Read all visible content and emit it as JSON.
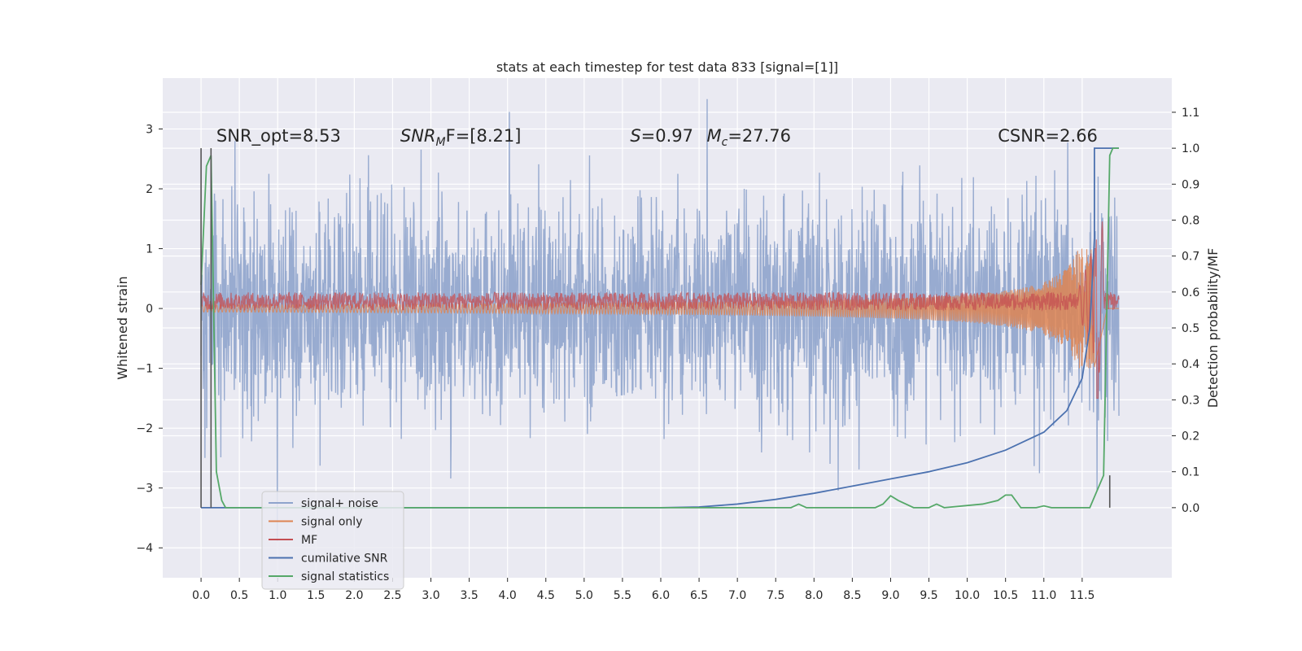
{
  "chart_data": {
    "type": "line",
    "title": "stats at each timestep for test data 833 [signal=[1]]",
    "xlabel": "",
    "ylabel": "Whitened strain",
    "ylabel_right": "Detection probability/MF",
    "xlim": [
      -0.5,
      12.67
    ],
    "ylim": [
      -4.5,
      3.85
    ],
    "ylim_right": [
      -0.195,
      1.195
    ],
    "x_ticks": [
      "0.0",
      "0.5",
      "1.0",
      "1.5",
      "2.0",
      "2.5",
      "3.0",
      "3.5",
      "4.0",
      "4.5",
      "5.0",
      "5.5",
      "6.0",
      "6.5",
      "7.0",
      "7.5",
      "8.0",
      "8.5",
      "9.0",
      "9.5",
      "10.0",
      "10.5",
      "11.0",
      "11.5"
    ],
    "y_ticks_left": [
      "3",
      "2",
      "1",
      "0",
      "−1",
      "−2",
      "−3",
      "−4"
    ],
    "y_ticks_right": [
      "1.1",
      "1.0",
      "0.9",
      "0.8",
      "0.7",
      "0.6",
      "0.5",
      "0.4",
      "0.3",
      "0.2",
      "0.1",
      "0.0"
    ],
    "grid": true,
    "legend_position": "lower-left",
    "annotations": [
      {
        "text": "SNR_opt=8.53",
        "x": 0.2,
        "y": 2.79
      },
      {
        "text": "SNR",
        "sub": "M",
        "tail": "F=[8.21]",
        "x": 2.6,
        "y": 2.79,
        "italic": true
      },
      {
        "text": "S",
        "tail": "=0.97",
        "x": 5.6,
        "y": 2.79,
        "italic": true
      },
      {
        "text": "M",
        "sub": "c",
        "tail": "=27.76",
        "x": 6.6,
        "y": 2.79,
        "italic": true
      },
      {
        "text": "CSNR=2.66",
        "x": 10.4,
        "y": 2.79
      }
    ],
    "series": [
      {
        "name": "signal+ noise",
        "color": "#8fa4cc",
        "axis": "left",
        "noise_amplitude": 1.8,
        "x_range": [
          0.0,
          11.98
        ]
      },
      {
        "name": "signal only",
        "color": "#dd8452",
        "axis": "left",
        "description_values": {
          "amplitude_start": 0.05,
          "amplitude_end": 1.0,
          "peak_x": 11.66
        }
      },
      {
        "name": "MF",
        "color": "#c44e52",
        "axis": "left",
        "description_values": {
          "center": 0.12,
          "band": 0.15,
          "peak_x": 11.66,
          "peak_y": 1.0,
          "trough_y": -1.5
        }
      },
      {
        "name": "cumilative SNR",
        "color": "#4c72b0",
        "axis": "right",
        "x": [
          0.0,
          0.13,
          0.13,
          6.0,
          6.5,
          7.0,
          7.5,
          8.0,
          8.5,
          9.0,
          9.5,
          10.0,
          10.5,
          11.0,
          11.3,
          11.5,
          11.6,
          11.66,
          11.66,
          11.98
        ],
        "y": [
          0.0,
          0.0,
          0.0,
          0.0,
          0.002,
          0.01,
          0.023,
          0.04,
          0.06,
          0.08,
          0.1,
          0.125,
          0.16,
          0.21,
          0.27,
          0.36,
          0.5,
          0.75,
          1.0,
          1.0
        ]
      },
      {
        "name": "signal statistics",
        "color": "#55a868",
        "axis": "right",
        "x": [
          0.0,
          0.07,
          0.13,
          0.2,
          0.27,
          0.32,
          7.7,
          7.8,
          7.9,
          8.2,
          8.8,
          8.9,
          9.0,
          9.1,
          9.3,
          9.5,
          9.6,
          9.7,
          10.2,
          10.4,
          10.5,
          10.58,
          10.7,
          10.9,
          11.0,
          11.1,
          11.6,
          11.78,
          11.86,
          11.9,
          11.98
        ],
        "y": [
          0.62,
          0.95,
          0.98,
          0.1,
          0.02,
          0.0,
          0.0,
          0.01,
          0.0,
          0.0,
          0.0,
          0.01,
          0.033,
          0.02,
          0.0,
          0.0,
          0.01,
          0.0,
          0.01,
          0.02,
          0.035,
          0.035,
          0.0,
          0.0,
          0.005,
          0.0,
          0.0,
          0.09,
          0.98,
          1.0,
          1.0
        ]
      }
    ],
    "vertical_markers": [
      {
        "x": 0.0,
        "color": "#555555",
        "y_top": 1.0
      },
      {
        "x": 0.13,
        "color": "#555555",
        "y_top": 1.0
      },
      {
        "x": 11.86,
        "color": "#555555",
        "y_top": 0.09
      }
    ]
  }
}
